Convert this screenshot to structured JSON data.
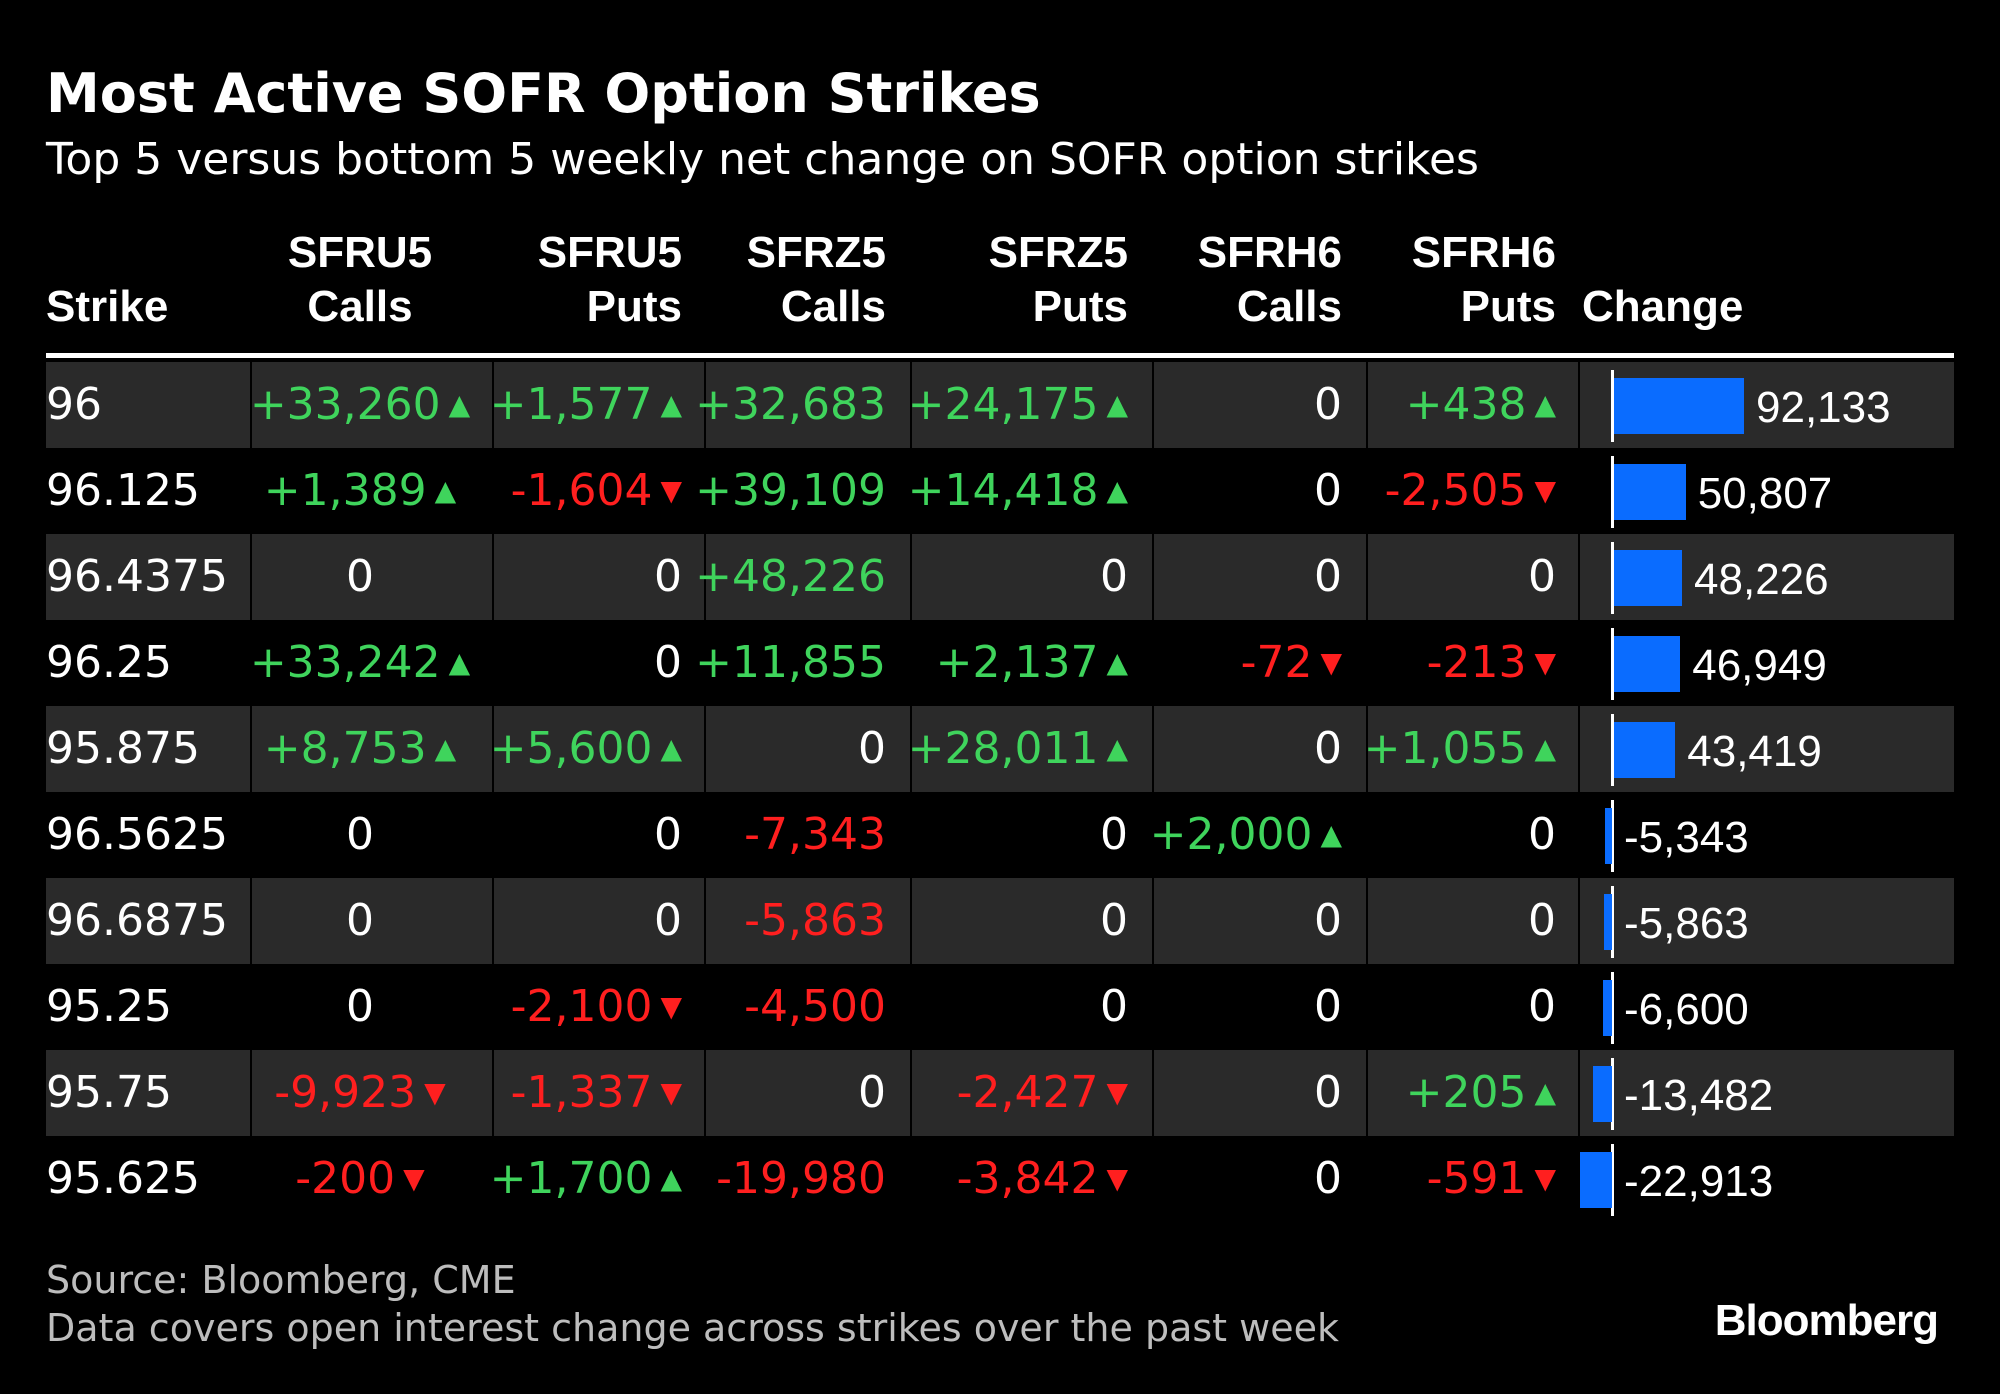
{
  "title": "Most Active SOFR Option Strikes",
  "subtitle": "Top 5 versus bottom 5 weekly net change on SOFR option strikes",
  "footer": {
    "source": "Source: Bloomberg, CME",
    "note": "Data covers open interest change across strikes over the past week",
    "brand": "Bloomberg"
  },
  "colors": {
    "background": "#000000",
    "row_shade": "#2a2a2a",
    "positive": "#3fd45c",
    "negative": "#ff1f1f",
    "bar": "#0a6cff"
  },
  "chart_data": {
    "type": "table",
    "columns": [
      {
        "key": "strike",
        "lines": [
          "",
          "Strike"
        ]
      },
      {
        "key": "sfru5_calls",
        "lines": [
          "SFRU5",
          "Calls"
        ]
      },
      {
        "key": "sfru5_puts",
        "lines": [
          "SFRU5",
          "Puts"
        ]
      },
      {
        "key": "sfrz5_calls",
        "lines": [
          "SFRZ5",
          "Calls"
        ]
      },
      {
        "key": "sfrz5_puts",
        "lines": [
          "SFRZ5",
          "Puts"
        ]
      },
      {
        "key": "sfrh6_calls",
        "lines": [
          "SFRH6",
          "Calls"
        ]
      },
      {
        "key": "sfrh6_puts",
        "lines": [
          "SFRH6",
          "Puts"
        ]
      },
      {
        "key": "change",
        "lines": [
          "",
          "Change"
        ]
      }
    ],
    "rows": [
      {
        "strike": "96",
        "cells": [
          {
            "text": "+33,260",
            "dir": "up"
          },
          {
            "text": "+1,577",
            "dir": "up"
          },
          {
            "text": "+32,683",
            "dir": "none"
          },
          {
            "text": "+24,175",
            "dir": "up"
          },
          {
            "text": "0",
            "dir": "none"
          },
          {
            "text": "+438",
            "dir": "up"
          }
        ],
        "change": 92133,
        "change_label": "92,133"
      },
      {
        "strike": "96.125",
        "cells": [
          {
            "text": "+1,389",
            "dir": "up"
          },
          {
            "text": "-1,604",
            "dir": "down"
          },
          {
            "text": "+39,109",
            "dir": "none"
          },
          {
            "text": "+14,418",
            "dir": "up"
          },
          {
            "text": "0",
            "dir": "none"
          },
          {
            "text": "-2,505",
            "dir": "down"
          }
        ],
        "change": 50807,
        "change_label": "50,807"
      },
      {
        "strike": "96.4375",
        "cells": [
          {
            "text": "0",
            "dir": "none"
          },
          {
            "text": "0",
            "dir": "none"
          },
          {
            "text": "+48,226",
            "dir": "none"
          },
          {
            "text": "0",
            "dir": "none"
          },
          {
            "text": "0",
            "dir": "none"
          },
          {
            "text": "0",
            "dir": "none"
          }
        ],
        "change": 48226,
        "change_label": "48,226"
      },
      {
        "strike": "96.25",
        "cells": [
          {
            "text": "+33,242",
            "dir": "up"
          },
          {
            "text": "0",
            "dir": "none"
          },
          {
            "text": "+11,855",
            "dir": "none"
          },
          {
            "text": "+2,137",
            "dir": "up"
          },
          {
            "text": "-72",
            "dir": "down"
          },
          {
            "text": "-213",
            "dir": "down"
          }
        ],
        "change": 46949,
        "change_label": "46,949"
      },
      {
        "strike": "95.875",
        "cells": [
          {
            "text": "+8,753",
            "dir": "up"
          },
          {
            "text": "+5,600",
            "dir": "up"
          },
          {
            "text": "0",
            "dir": "none"
          },
          {
            "text": "+28,011",
            "dir": "up"
          },
          {
            "text": "0",
            "dir": "none"
          },
          {
            "text": "+1,055",
            "dir": "up"
          }
        ],
        "change": 43419,
        "change_label": "43,419"
      },
      {
        "strike": "96.5625",
        "cells": [
          {
            "text": "0",
            "dir": "none"
          },
          {
            "text": "0",
            "dir": "none"
          },
          {
            "text": "-7,343",
            "dir": "none"
          },
          {
            "text": "0",
            "dir": "none"
          },
          {
            "text": "+2,000",
            "dir": "up"
          },
          {
            "text": "0",
            "dir": "none"
          }
        ],
        "change": -5343,
        "change_label": "-5,343"
      },
      {
        "strike": "96.6875",
        "cells": [
          {
            "text": "0",
            "dir": "none"
          },
          {
            "text": "0",
            "dir": "none"
          },
          {
            "text": "-5,863",
            "dir": "none"
          },
          {
            "text": "0",
            "dir": "none"
          },
          {
            "text": "0",
            "dir": "none"
          },
          {
            "text": "0",
            "dir": "none"
          }
        ],
        "change": -5863,
        "change_label": "-5,863"
      },
      {
        "strike": "95.25",
        "cells": [
          {
            "text": "0",
            "dir": "none"
          },
          {
            "text": "-2,100",
            "dir": "down"
          },
          {
            "text": "-4,500",
            "dir": "none"
          },
          {
            "text": "0",
            "dir": "none"
          },
          {
            "text": "0",
            "dir": "none"
          },
          {
            "text": "0",
            "dir": "none"
          }
        ],
        "change": -6600,
        "change_label": "-6,600"
      },
      {
        "strike": "95.75",
        "cells": [
          {
            "text": "-9,923",
            "dir": "down"
          },
          {
            "text": "-1,337",
            "dir": "down"
          },
          {
            "text": "0",
            "dir": "none"
          },
          {
            "text": "-2,427",
            "dir": "down"
          },
          {
            "text": "0",
            "dir": "none"
          },
          {
            "text": "+205",
            "dir": "up"
          }
        ],
        "change": -13482,
        "change_label": "-13,482"
      },
      {
        "strike": "95.625",
        "cells": [
          {
            "text": "-200",
            "dir": "down"
          },
          {
            "text": "+1,700",
            "dir": "up"
          },
          {
            "text": "-19,980",
            "dir": "none"
          },
          {
            "text": "-3,842",
            "dir": "down"
          },
          {
            "text": "0",
            "dir": "none"
          },
          {
            "text": "-591",
            "dir": "down"
          }
        ],
        "change": -22913,
        "change_label": "-22,913"
      }
    ]
  }
}
